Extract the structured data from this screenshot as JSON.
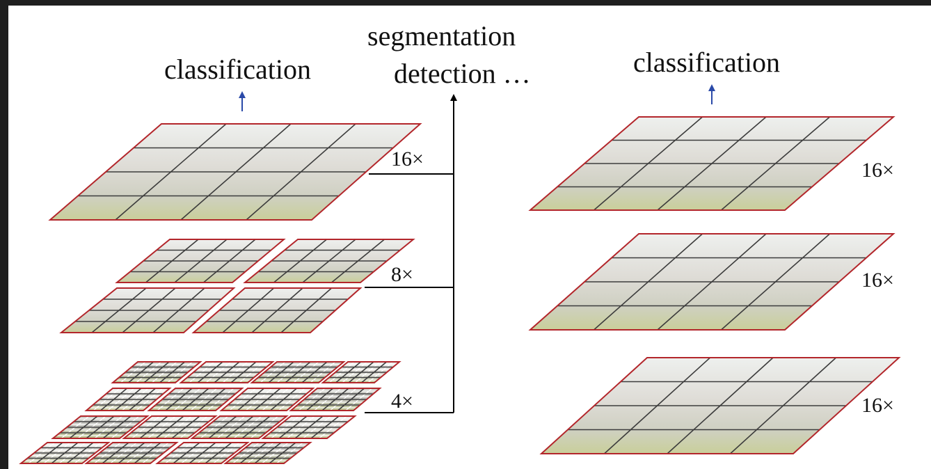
{
  "labels": {
    "left_classification": "classification",
    "segmentation": "segmentation",
    "detection": "detection …",
    "right_classification": "classification"
  },
  "scales": {
    "left": [
      "16×",
      "8×",
      "4×"
    ],
    "right": [
      "16×",
      "16×",
      "16×"
    ]
  },
  "colors": {
    "border": "#b3262b",
    "grid": "#3c3c3c",
    "arrow_blue": "#2a4aa8",
    "arrow_black": "#000000"
  }
}
